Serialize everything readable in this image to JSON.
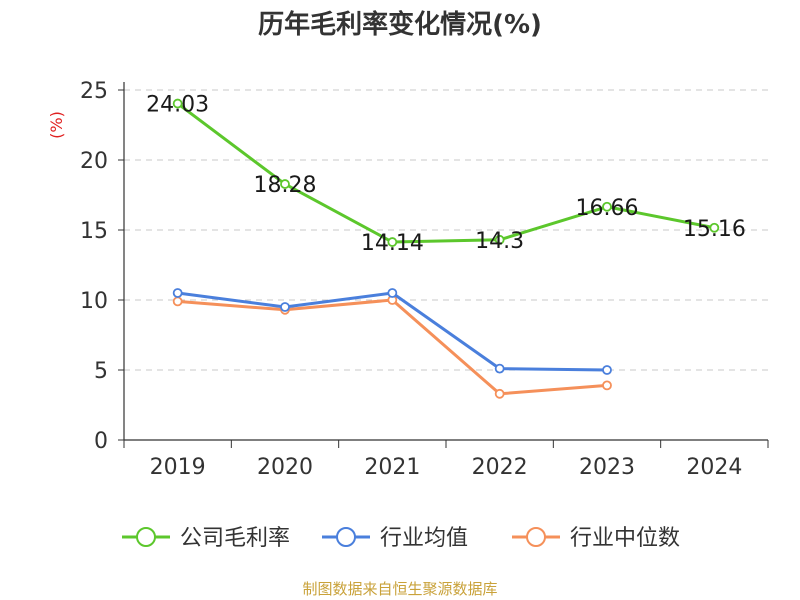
{
  "chart_data": {
    "type": "line",
    "title": "历年毛利率变化情况(%)",
    "ylabel": "(%)",
    "xlabel": "",
    "categories": [
      "2019",
      "2020",
      "2021",
      "2022",
      "2023",
      "2024"
    ],
    "ylim": [
      0,
      25
    ],
    "yticks": [
      0,
      5,
      10,
      15,
      20,
      25
    ],
    "grid": true,
    "legend_position": "bottom",
    "series": [
      {
        "name": "公司毛利率",
        "color": "#5cc72c",
        "values": [
          24.03,
          18.28,
          14.14,
          14.3,
          16.66,
          15.16
        ],
        "labels": [
          "24.03",
          "18.28",
          "14.14",
          "14.3",
          "16.66",
          "15.16"
        ]
      },
      {
        "name": "行业均值",
        "color": "#4a7fdc",
        "values": [
          10.5,
          9.5,
          10.5,
          5.1,
          5.0,
          null
        ]
      },
      {
        "name": "行业中位数",
        "color": "#f5905a",
        "values": [
          9.9,
          9.3,
          10.0,
          3.3,
          3.9,
          null
        ]
      }
    ]
  },
  "source": "制图数据来自恒生聚源数据库"
}
